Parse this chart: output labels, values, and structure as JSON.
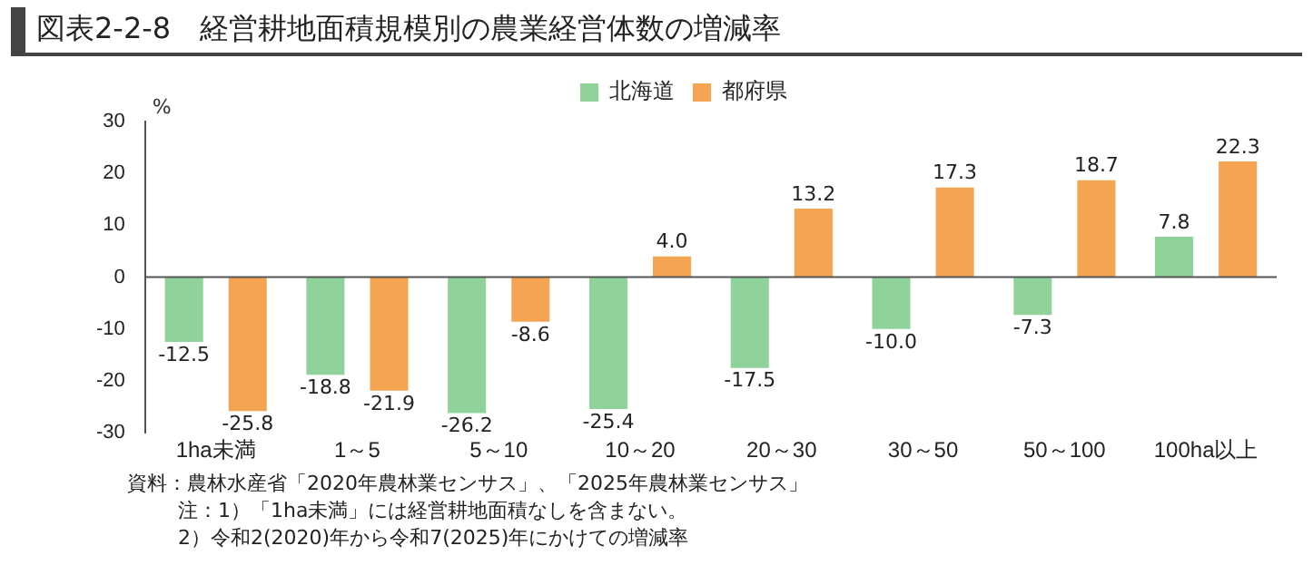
{
  "chart_data": {
    "type": "bar",
    "title": "図表2-2-8　経営耕地面積規模別の農業経営体数の増減率",
    "ylabel": "%",
    "categories": [
      "1ha未満",
      "1～5",
      "5～10",
      "10～20",
      "20～30",
      "30～50",
      "50～100",
      "100ha以上"
    ],
    "series": [
      {
        "name": "北海道",
        "color": "#8fd39b",
        "values": [
          -12.5,
          -18.8,
          -26.2,
          -25.4,
          -17.5,
          -10.0,
          -7.3,
          7.8
        ],
        "value_labels": [
          "-12.5",
          "-18.8",
          "-26.2",
          "-25.4",
          "-17.5",
          "-10.0",
          "-7.3",
          "7.8"
        ]
      },
      {
        "name": "都府県",
        "color": "#f5a452",
        "values": [
          -25.8,
          -21.9,
          -8.6,
          4.0,
          13.2,
          17.3,
          18.7,
          22.3
        ],
        "value_labels": [
          "-25.8",
          "-21.9",
          "-8.6",
          "4.0",
          "13.2",
          "17.3",
          "18.7",
          "22.3"
        ]
      }
    ],
    "ylim": [
      -30,
      30
    ],
    "yticks": [
      -30,
      -20,
      -10,
      0,
      10,
      20,
      30
    ],
    "legend": "top",
    "ref_lines": [
      {
        "axis": "y",
        "value": 0,
        "color": "#555555"
      }
    ],
    "annotations": [
      "資料：農林水産省「2020年農林業センサス」、「2025年農林業センサス」",
      "注：1）「1ha未満」には経営耕地面積なしを含まない。",
      "2）令和2(2020)年から令和7(2025)年にかけての増減率"
    ]
  }
}
